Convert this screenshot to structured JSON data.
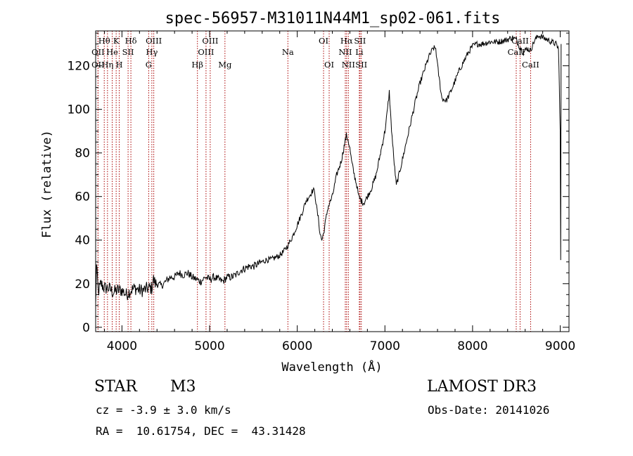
{
  "chart_data": {
    "type": "line",
    "title": "spec-56957-M31011N44M1_sp02-061.fits",
    "xlabel": "Wavelength (Å)",
    "ylabel": "Flux (relative)",
    "xlim": [
      3700,
      9100
    ],
    "ylim": [
      -2,
      136
    ],
    "xticks": [
      4000,
      5000,
      6000,
      7000,
      8000,
      9000
    ],
    "yticks": [
      0,
      20,
      40,
      60,
      80,
      100,
      120
    ],
    "spectrum_knots": [
      [
        3700,
        10
      ],
      [
        3710,
        28
      ],
      [
        3730,
        16
      ],
      [
        3760,
        20
      ],
      [
        3800,
        18
      ],
      [
        3850,
        18
      ],
      [
        3900,
        16
      ],
      [
        3950,
        17
      ],
      [
        4000,
        17
      ],
      [
        4050,
        15
      ],
      [
        4100,
        17
      ],
      [
        4150,
        18
      ],
      [
        4200,
        17
      ],
      [
        4250,
        17
      ],
      [
        4300,
        18
      ],
      [
        4340,
        18
      ],
      [
        4360,
        22
      ],
      [
        4380,
        20
      ],
      [
        4400,
        20
      ],
      [
        4450,
        19
      ],
      [
        4500,
        21
      ],
      [
        4550,
        23
      ],
      [
        4600,
        23
      ],
      [
        4650,
        25
      ],
      [
        4700,
        24
      ],
      [
        4750,
        25
      ],
      [
        4800,
        23
      ],
      [
        4850,
        22
      ],
      [
        4900,
        21
      ],
      [
        4950,
        23
      ],
      [
        5000,
        22
      ],
      [
        5050,
        23
      ],
      [
        5100,
        22
      ],
      [
        5150,
        21
      ],
      [
        5200,
        23
      ],
      [
        5250,
        23
      ],
      [
        5300,
        24
      ],
      [
        5350,
        26
      ],
      [
        5400,
        27
      ],
      [
        5450,
        28
      ],
      [
        5500,
        28
      ],
      [
        5550,
        29
      ],
      [
        5600,
        30
      ],
      [
        5650,
        31
      ],
      [
        5700,
        31
      ],
      [
        5750,
        32
      ],
      [
        5800,
        33
      ],
      [
        5850,
        35
      ],
      [
        5900,
        38
      ],
      [
        5950,
        42
      ],
      [
        6000,
        47
      ],
      [
        6050,
        52
      ],
      [
        6100,
        58
      ],
      [
        6150,
        61
      ],
      [
        6180,
        63
      ],
      [
        6200,
        62
      ],
      [
        6220,
        55
      ],
      [
        6240,
        50
      ],
      [
        6260,
        43
      ],
      [
        6280,
        40
      ],
      [
        6300,
        43
      ],
      [
        6320,
        48
      ],
      [
        6350,
        55
      ],
      [
        6400,
        60
      ],
      [
        6450,
        70
      ],
      [
        6500,
        76
      ],
      [
        6540,
        84
      ],
      [
        6560,
        88
      ],
      [
        6580,
        86
      ],
      [
        6600,
        82
      ],
      [
        6620,
        76
      ],
      [
        6650,
        70
      ],
      [
        6680,
        65
      ],
      [
        6700,
        60
      ],
      [
        6730,
        58
      ],
      [
        6760,
        57
      ],
      [
        6800,
        60
      ],
      [
        6850,
        64
      ],
      [
        6900,
        70
      ],
      [
        6950,
        80
      ],
      [
        7000,
        90
      ],
      [
        7030,
        100
      ],
      [
        7050,
        108
      ],
      [
        7070,
        94
      ],
      [
        7100,
        78
      ],
      [
        7130,
        65
      ],
      [
        7160,
        70
      ],
      [
        7200,
        77
      ],
      [
        7250,
        86
      ],
      [
        7300,
        95
      ],
      [
        7350,
        104
      ],
      [
        7400,
        112
      ],
      [
        7450,
        118
      ],
      [
        7500,
        124
      ],
      [
        7550,
        128
      ],
      [
        7580,
        128
      ],
      [
        7600,
        120
      ],
      [
        7620,
        114
      ],
      [
        7650,
        105
      ],
      [
        7700,
        104
      ],
      [
        7750,
        108
      ],
      [
        7800,
        113
      ],
      [
        7850,
        118
      ],
      [
        7900,
        122
      ],
      [
        7950,
        126
      ],
      [
        8000,
        129
      ],
      [
        8050,
        130
      ],
      [
        8100,
        130
      ],
      [
        8200,
        131
      ],
      [
        8300,
        131
      ],
      [
        8400,
        132
      ],
      [
        8450,
        133
      ],
      [
        8500,
        132
      ],
      [
        8520,
        130
      ],
      [
        8550,
        128
      ],
      [
        8580,
        126
      ],
      [
        8620,
        128
      ],
      [
        8660,
        127
      ],
      [
        8700,
        131
      ],
      [
        8750,
        134
      ],
      [
        8800,
        133
      ],
      [
        8850,
        132
      ],
      [
        8900,
        131
      ],
      [
        8950,
        130
      ],
      [
        8980,
        128
      ],
      [
        8990,
        110
      ],
      [
        9000,
        90
      ],
      [
        9005,
        30
      ],
      [
        9010,
        130
      ]
    ],
    "spectral_lines": [
      {
        "label": "Hθ",
        "wl": 3798,
        "row": 1
      },
      {
        "label": "OII",
        "wl": 3727,
        "row": 2
      },
      {
        "label": "OII",
        "wl": 3727,
        "row": 3
      },
      {
        "label": "He",
        "wl": 3889,
        "row": 2
      },
      {
        "label": "Hη",
        "wl": 3835,
        "row": 3
      },
      {
        "label": "K",
        "wl": 3934,
        "row": 1
      },
      {
        "label": "H",
        "wl": 3969,
        "row": 3
      },
      {
        "label": "SII",
        "wl": 4070,
        "row": 2
      },
      {
        "label": "Hδ",
        "wl": 4102,
        "row": 1
      },
      {
        "label": "OIII",
        "wl": 4363,
        "row": 1
      },
      {
        "label": "Hγ",
        "wl": 4341,
        "row": 2
      },
      {
        "label": "G",
        "wl": 4305,
        "row": 3
      },
      {
        "label": "Hβ",
        "wl": 4861,
        "row": 3
      },
      {
        "label": "OIII",
        "wl": 5007,
        "row": 1
      },
      {
        "label": "OIII",
        "wl": 4959,
        "row": 2
      },
      {
        "label": "Mg",
        "wl": 5175,
        "row": 3
      },
      {
        "label": "Na",
        "wl": 5893,
        "row": 2
      },
      {
        "label": "OI",
        "wl": 6300,
        "row": 1
      },
      {
        "label": "OI",
        "wl": 6364,
        "row": 3
      },
      {
        "label": "Hα",
        "wl": 6563,
        "row": 1
      },
      {
        "label": "NII",
        "wl": 6548,
        "row": 2
      },
      {
        "label": "NII",
        "wl": 6583,
        "row": 3
      },
      {
        "label": "SII",
        "wl": 6716,
        "row": 1
      },
      {
        "label": "Li",
        "wl": 6708,
        "row": 2
      },
      {
        "label": "SII",
        "wl": 6731,
        "row": 3
      },
      {
        "label": "CaII",
        "wl": 8542,
        "row": 1
      },
      {
        "label": "CaII",
        "wl": 8498,
        "row": 2
      },
      {
        "label": "CaII",
        "wl": 8662,
        "row": 3
      }
    ],
    "line_color": "#aa0000"
  },
  "info": {
    "class_label": "STAR",
    "subclass": "M3",
    "survey": "LAMOST DR3",
    "cz": "cz = -3.9 ± 3.0 km/s",
    "obs_date": "Obs-Date: 20141026",
    "coords": "RA =  10.61754, DEC =  43.31428"
  }
}
